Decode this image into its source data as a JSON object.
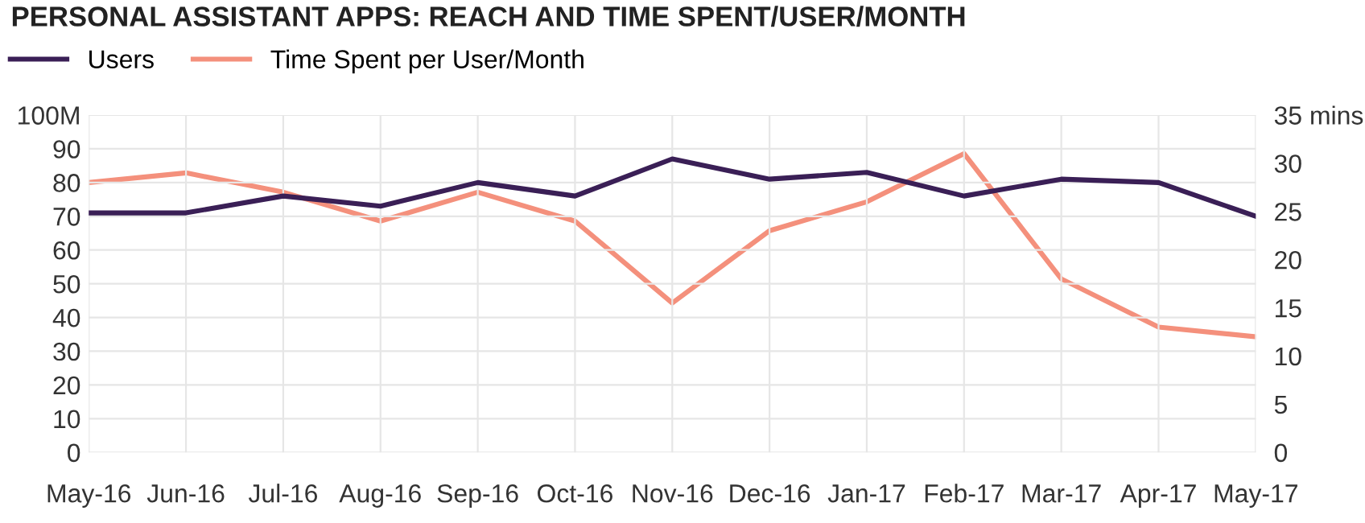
{
  "chart_data": {
    "type": "line",
    "title": "PERSONAL ASSISTANT APPS: REACH AND TIME SPENT/USER/MONTH",
    "categories": [
      "May-16",
      "Jun-16",
      "Jul-16",
      "Aug-16",
      "Sep-16",
      "Oct-16",
      "Nov-16",
      "Dec-16",
      "Jan-17",
      "Feb-17",
      "Mar-17",
      "Apr-17",
      "May-17"
    ],
    "series": [
      {
        "name": "Users",
        "color": "#3a1f56",
        "values": [
          71,
          71,
          76,
          73,
          80,
          76,
          87,
          81,
          83,
          76,
          81,
          80,
          70
        ]
      },
      {
        "name": "Time Spent per User/Month",
        "color": "#f4907c",
        "axis": "y2",
        "values": [
          28,
          29,
          27,
          24,
          27,
          24,
          15.5,
          23,
          26,
          31,
          18,
          13,
          12
        ]
      }
    ],
    "ylim": [
      0,
      100
    ],
    "yticks": [
      0,
      10,
      20,
      30,
      40,
      50,
      60,
      70,
      80,
      90,
      {
        "value": 100,
        "label": "100M"
      }
    ],
    "y2lim": [
      0,
      35
    ],
    "y2ticks": [
      0,
      5,
      10,
      15,
      20,
      25,
      30,
      {
        "value": 35,
        "label": "35 mins"
      }
    ],
    "grid": true,
    "legend": "top left",
    "marker": "none",
    "line_style": "solid"
  }
}
